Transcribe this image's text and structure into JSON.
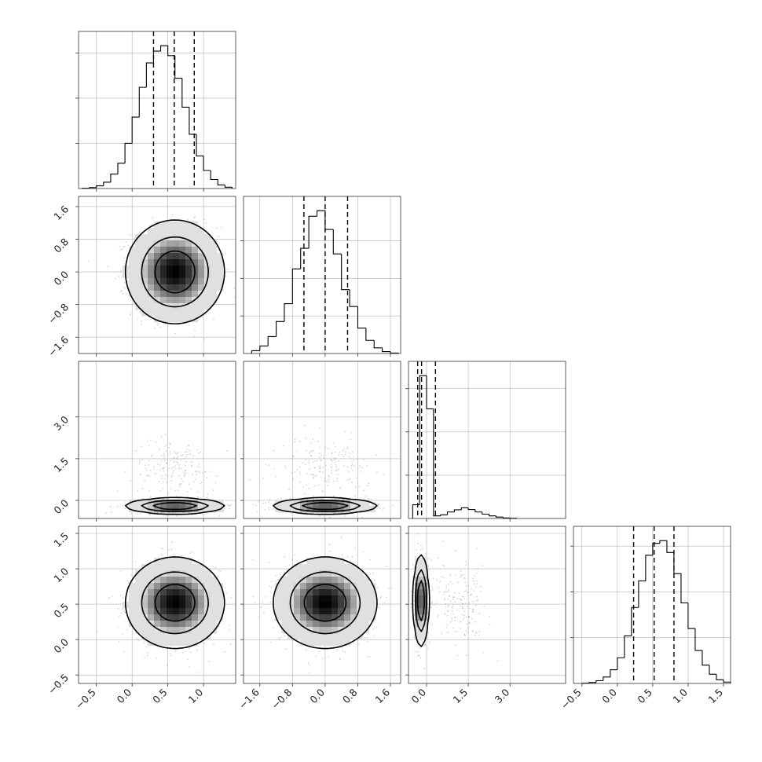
{
  "chart_data": {
    "type": "corner",
    "parameters": 4,
    "grid": true,
    "colors": {
      "points": "#8c8c8c",
      "contour": "#000000",
      "density_dark": "#000000",
      "density_light": "#ffffff"
    },
    "axes": [
      {
        "range": [
          -0.75,
          1.45
        ],
        "ticks": [
          -0.5,
          0.0,
          0.5,
          1.0
        ],
        "tick_labels": [
          "−0.5",
          "0.0",
          "0.5",
          "1.0"
        ]
      },
      {
        "range": [
          -2.0,
          1.85
        ],
        "ticks": [
          -1.6,
          -0.8,
          0.0,
          0.8,
          1.6
        ],
        "tick_labels": [
          "−1.6",
          "−0.8",
          "0.0",
          "0.8",
          "1.6"
        ]
      },
      {
        "range": [
          -0.65,
          5.0
        ],
        "ticks": [
          0.0,
          1.5,
          3.0
        ],
        "tick_labels": [
          "0.0",
          "1.5",
          "3.0"
        ]
      },
      {
        "range": [
          -0.62,
          1.6
        ],
        "ticks": [
          -0.5,
          0.0,
          0.5,
          1.0,
          1.5
        ],
        "tick_labels": [
          "−0.5",
          "0.0",
          "0.5",
          "1.0",
          "1.5"
        ]
      }
    ],
    "marginals": [
      {
        "param": 0,
        "bin_edges": [
          -0.7,
          -0.6,
          -0.5,
          -0.4,
          -0.3,
          -0.2,
          -0.1,
          0.0,
          0.1,
          0.2,
          0.3,
          0.4,
          0.5,
          0.6,
          0.7,
          0.8,
          0.9,
          1.0,
          1.1,
          1.2,
          1.3,
          1.4
        ],
        "counts": [
          0.3,
          1,
          3,
          7,
          16,
          28,
          50,
          79,
          112,
          139,
          152,
          158,
          147,
          122,
          90,
          60,
          36,
          20,
          10,
          4,
          1.5
        ],
        "y_ticks": [
          50,
          100,
          150
        ],
        "quantiles": [
          0.3,
          0.59,
          0.87
        ]
      },
      {
        "param": 1,
        "bin_edges": [
          -1.8,
          -1.6,
          -1.4,
          -1.2,
          -1.0,
          -0.8,
          -0.6,
          -0.4,
          -0.2,
          0.0,
          0.2,
          0.4,
          0.6,
          0.8,
          1.0,
          1.2,
          1.4,
          1.6,
          1.8
        ],
        "counts": [
          3,
          8,
          18,
          34,
          53,
          90,
          112,
          146,
          152,
          132,
          106,
          68,
          50,
          27,
          14,
          6,
          2,
          0.5
        ],
        "y_ticks": [
          40,
          80,
          120
        ],
        "quantiles": [
          -0.52,
          0.0,
          0.55
        ]
      },
      {
        "param": 2,
        "bin_edges": [
          -0.5,
          -0.25,
          -0.0,
          0.25,
          0.5,
          0.75,
          1.0,
          1.25,
          1.5,
          1.75,
          2.0,
          2.25,
          2.5,
          2.75,
          3.0,
          3.25
        ],
        "counts": [
          95,
          990,
          760,
          18,
          25,
          45,
          60,
          74,
          62,
          45,
          30,
          18,
          10,
          4,
          1.5
        ],
        "y_ticks": [
          300,
          600,
          900
        ],
        "quantiles": [
          -0.32,
          -0.18,
          0.32
        ]
      },
      {
        "param": 3,
        "bin_edges": [
          -0.5,
          -0.4,
          -0.3,
          -0.2,
          -0.1,
          0.0,
          0.1,
          0.2,
          0.3,
          0.4,
          0.5,
          0.6,
          0.7,
          0.8,
          0.9,
          1.0,
          1.1,
          1.2,
          1.3,
          1.4,
          1.5,
          1.6
        ],
        "counts": [
          0.3,
          1,
          3,
          7,
          15,
          28,
          52,
          83,
          112,
          140,
          153,
          156,
          143,
          120,
          88,
          60,
          36,
          20,
          10,
          4,
          1.5
        ],
        "y_ticks": [
          50,
          100,
          150
        ],
        "quantiles": [
          0.23,
          0.52,
          0.8
        ]
      }
    ],
    "joints": [
      {
        "x_param": 0,
        "y_param": 1,
        "clusters": [
          {
            "weight": 1.0,
            "mean": [
              0.6,
              0.0
            ],
            "sd": [
              0.3,
              0.55
            ],
            "corr": 0.0
          }
        ],
        "levels": [
          0.95,
          0.65,
          0.3,
          0.07
        ]
      },
      {
        "x_param": 0,
        "y_param": 2,
        "clusters": [
          {
            "weight": 0.84,
            "mean": [
              0.6,
              -0.2
            ],
            "sd": [
              0.3,
              0.12
            ],
            "corr": 0.0
          },
          {
            "weight": 0.16,
            "mean": [
              0.6,
              1.2
            ],
            "sd": [
              0.3,
              0.5
            ],
            "corr": 0.0
          }
        ],
        "levels": [
          0.9,
          0.6,
          0.3,
          0.07
        ]
      },
      {
        "x_param": 1,
        "y_param": 2,
        "clusters": [
          {
            "weight": 0.84,
            "mean": [
              0.0,
              -0.2
            ],
            "sd": [
              0.55,
              0.12
            ],
            "corr": 0.0
          },
          {
            "weight": 0.16,
            "mean": [
              0.0,
              1.2
            ],
            "sd": [
              0.55,
              0.5
            ],
            "corr": 0.0
          }
        ],
        "levels": [
          0.9,
          0.6,
          0.3,
          0.07
        ]
      },
      {
        "x_param": 0,
        "y_param": 3,
        "clusters": [
          {
            "weight": 1.0,
            "mean": [
              0.6,
              0.52
            ],
            "sd": [
              0.3,
              0.28
            ],
            "corr": 0.0
          }
        ],
        "levels": [
          0.95,
          0.65,
          0.3,
          0.07
        ]
      },
      {
        "x_param": 1,
        "y_param": 3,
        "clusters": [
          {
            "weight": 1.0,
            "mean": [
              0.0,
              0.52
            ],
            "sd": [
              0.55,
              0.28
            ],
            "corr": 0.0
          }
        ],
        "levels": [
          0.95,
          0.65,
          0.3,
          0.07
        ]
      },
      {
        "x_param": 2,
        "y_param": 3,
        "clusters": [
          {
            "weight": 0.84,
            "mean": [
              -0.2,
              0.55
            ],
            "sd": [
              0.12,
              0.28
            ],
            "corr": 0.0
          },
          {
            "weight": 0.16,
            "mean": [
              1.2,
              0.5
            ],
            "sd": [
              0.5,
              0.28
            ],
            "corr": 0.0
          }
        ],
        "levels": [
          0.9,
          0.6,
          0.3,
          0.07
        ]
      }
    ]
  }
}
